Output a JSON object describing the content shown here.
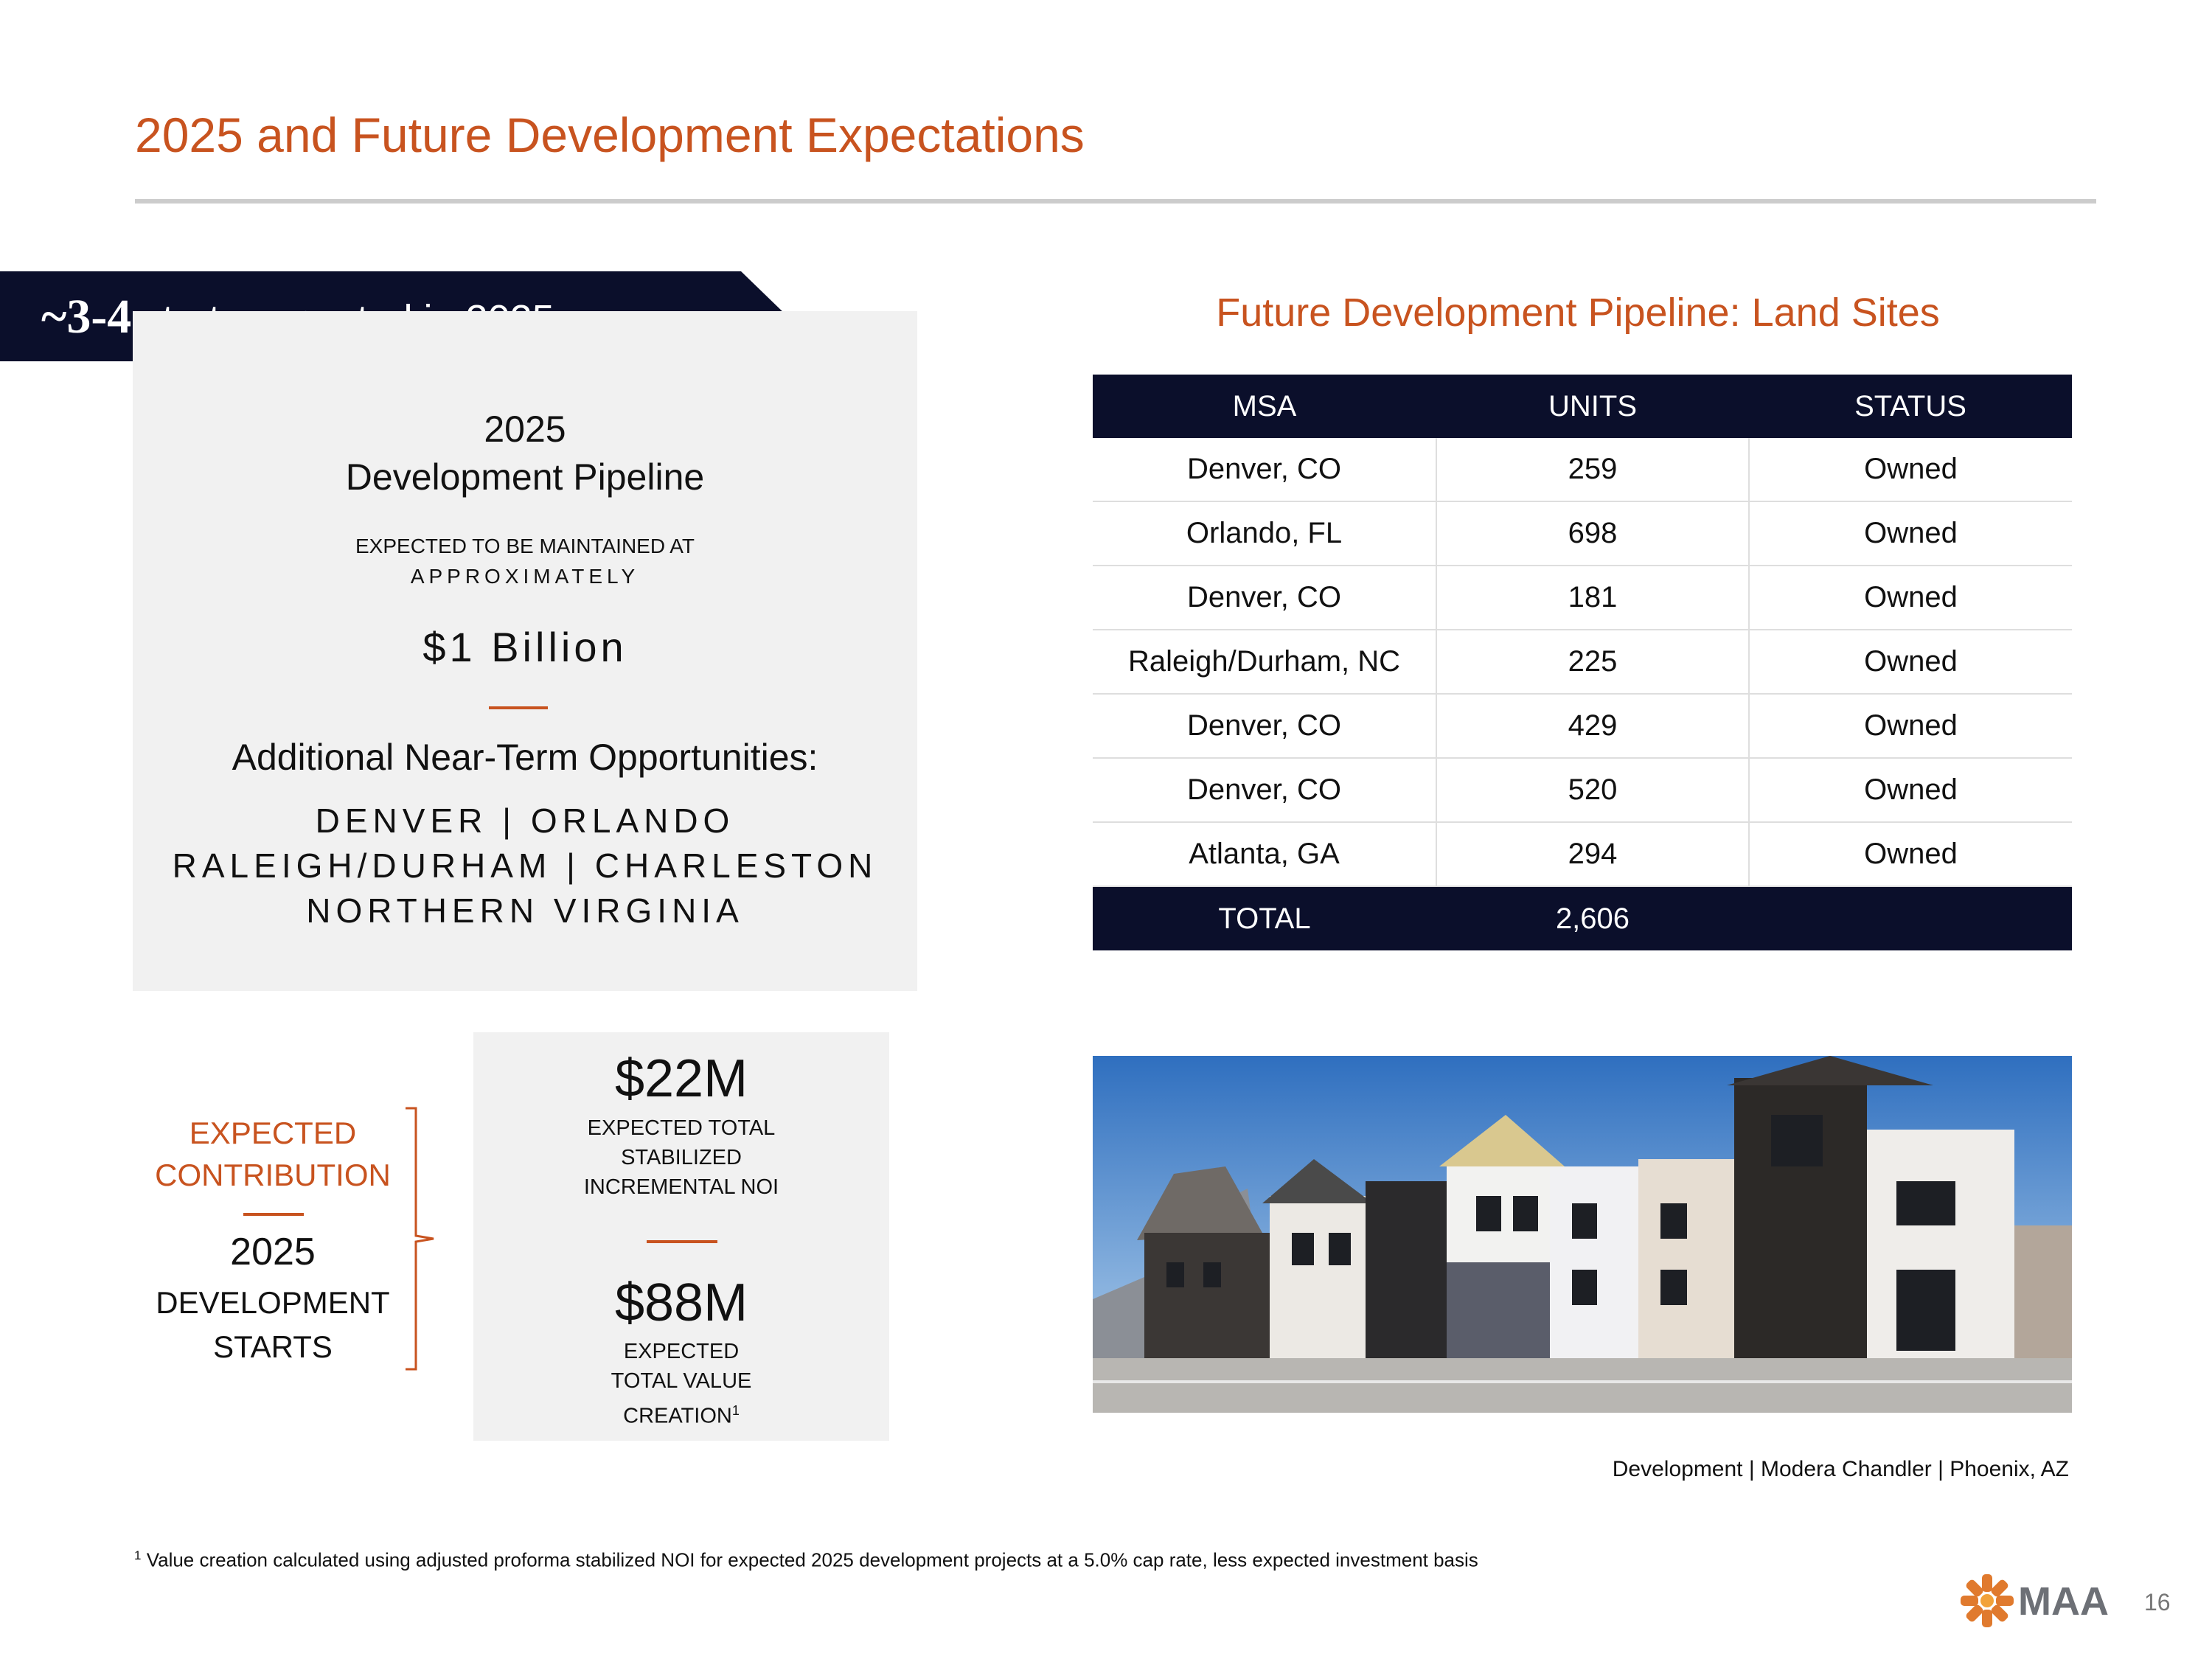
{
  "title": "2025 and Future Development Expectations",
  "banner": {
    "prefix": "~3-4",
    "text": " starts expected in 2025"
  },
  "pipeline_box": {
    "year": "2025",
    "subtitle": "Development Pipeline",
    "note_line1": "EXPECTED TO BE MAINTAINED AT",
    "note_line2": "APPROXIMATELY",
    "amount": "$1 Billion",
    "additional_title": "Additional Near-Term Opportunities:",
    "cities": [
      "DENVER | ORLANDO",
      "RALEIGH/DURHAM | CHARLESTON",
      "NORTHERN VIRGINIA"
    ]
  },
  "land_table": {
    "title": "Future Development Pipeline: Land Sites",
    "headers": [
      "MSA",
      "UNITS",
      "STATUS"
    ],
    "rows": [
      [
        "Denver, CO",
        "259",
        "Owned"
      ],
      [
        "Orlando, FL",
        "698",
        "Owned"
      ],
      [
        "Denver, CO",
        "181",
        "Owned"
      ],
      [
        "Raleigh/Durham, NC",
        "225",
        "Owned"
      ],
      [
        "Denver, CO",
        "429",
        "Owned"
      ],
      [
        "Denver, CO",
        "520",
        "Owned"
      ],
      [
        "Atlanta, GA",
        "294",
        "Owned"
      ]
    ],
    "total": [
      "TOTAL",
      "2,606",
      ""
    ]
  },
  "contribution": {
    "label_line1": "EXPECTED",
    "label_line2": "CONTRIBUTION",
    "year": "2025",
    "line1": "DEVELOPMENT",
    "line2": "STARTS"
  },
  "values": {
    "noi_amount": "$22M",
    "noi_lines": [
      "EXPECTED TOTAL",
      "STABILIZED",
      "INCREMENTAL NOI"
    ],
    "value_amount": "$88M",
    "value_lines": [
      "EXPECTED",
      "TOTAL VALUE",
      "CREATION"
    ],
    "value_footnote_mark": "1"
  },
  "photo_caption": "Development | Modera Chandler | Phoenix, AZ",
  "footnote": {
    "mark": "1",
    "text": " Value creation calculated using adjusted proforma stabilized NOI for expected 2025 development projects at a 5.0% cap rate, less expected investment basis"
  },
  "logo_text": "MAA",
  "page_number": "16",
  "colors": {
    "accent": "#c8531f",
    "navy": "#0b0f2b",
    "panel": "#f1f1f1"
  }
}
